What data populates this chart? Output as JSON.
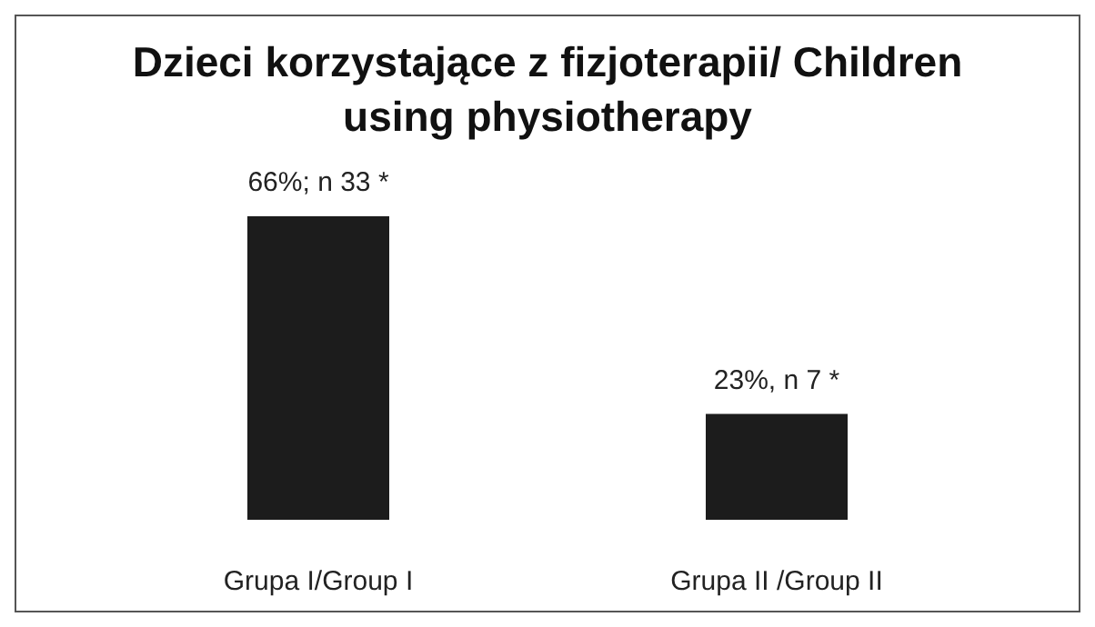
{
  "chart_data": {
    "type": "bar",
    "title": "Dzieci korzystające z fizjoterapii/ Children using physiotherapy",
    "categories": [
      "Grupa I/Group I",
      "Grupa II /Group II"
    ],
    "values": [
      66,
      23
    ],
    "value_labels": [
      "66%; n 33 *",
      "23%, n 7 *"
    ],
    "color": "#1c1c1c"
  }
}
